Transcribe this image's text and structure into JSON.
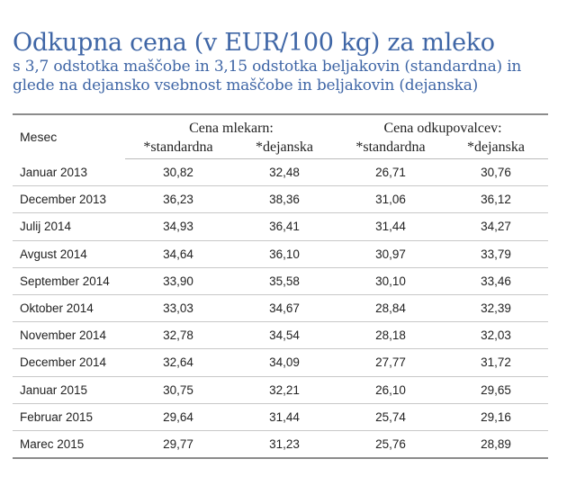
{
  "title": "Odkupna cena (v EUR/100 kg) za mleko",
  "subtitle_line1": "s 3,7 odstotka maščobe in 3,15 odstotka beljakovin (standardna) in",
  "subtitle_line2": "glede na dejansko vsebnost maščobe in beljakovin (dejanska)",
  "table": {
    "month_header": "Mesec",
    "group1": "Cena mlekarn:",
    "group2": "Cena odkupovalcev:",
    "sub_standard": "*standardna",
    "sub_actual": "*dejanska",
    "rows": [
      [
        "Januar 2013",
        "30,82",
        "32,48",
        "26,71",
        "30,76"
      ],
      [
        "December 2013",
        "36,23",
        "38,36",
        "31,06",
        "36,12"
      ],
      [
        "Julij 2014",
        "34,93",
        "36,41",
        "31,44",
        "34,27"
      ],
      [
        "Avgust 2014",
        "34,64",
        "36,10",
        "30,97",
        "33,79"
      ],
      [
        "September 2014",
        "33,90",
        "35,58",
        "30,10",
        "33,46"
      ],
      [
        "Oktober 2014",
        "33,03",
        "34,67",
        "28,84",
        "32,39"
      ],
      [
        "November 2014",
        "32,78",
        "34,54",
        "28,18",
        "32,03"
      ],
      [
        "December 2014",
        "32,64",
        "34,09",
        "27,77",
        "31,72"
      ],
      [
        "Januar 2015",
        "30,75",
        "32,21",
        "26,10",
        "29,65"
      ],
      [
        "Februar 2015",
        "29,64",
        "31,44",
        "25,74",
        "29,16"
      ],
      [
        "Marec 2015",
        "29,77",
        "31,23",
        "25,76",
        "28,89"
      ]
    ]
  }
}
